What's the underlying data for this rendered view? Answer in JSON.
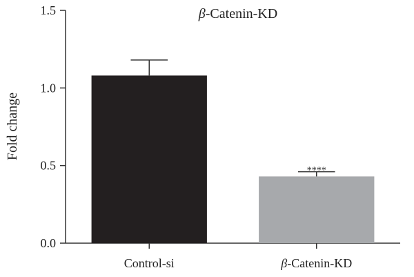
{
  "chart_data": {
    "type": "bar",
    "title_symbol": "β",
    "title_text": "-Catenin-KD",
    "ylabel": "Fold change",
    "xlabel": "",
    "ylim": [
      0,
      1.5
    ],
    "yticks": [
      "0.0",
      "0.5",
      "1.0",
      "1.5"
    ],
    "categories": [
      {
        "symbol": "",
        "text": "Control-si"
      },
      {
        "symbol": "β",
        "text": "-Catenin-KD"
      }
    ],
    "values": [
      1.08,
      0.43
    ],
    "error_upper": [
      1.18,
      0.46
    ],
    "significance": [
      "",
      "****"
    ],
    "colors": [
      "#231f20",
      "#a7a9ac"
    ],
    "grid": false,
    "legend": "none"
  }
}
